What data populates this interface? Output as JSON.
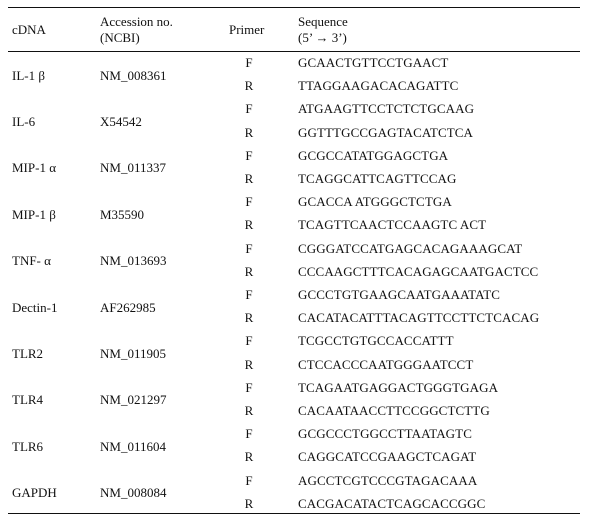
{
  "table": {
    "headers": {
      "cdna": "cDNA",
      "accession_line1": "Accession no.",
      "accession_line2": "(NCBI)",
      "primer": "Primer",
      "sequence_line1": "Sequence",
      "sequence_line2": "(5’ → 3’)"
    },
    "rows": [
      {
        "cdna": "IL-1 β",
        "accession": "NM_008361",
        "forward_label": "F",
        "forward_seq": "GCAACTGTTCCTGAACT",
        "reverse_label": "R",
        "reverse_seq": "TTAGGAAGACACAGATTC"
      },
      {
        "cdna": "IL-6",
        "accession": "X54542",
        "forward_label": "F",
        "forward_seq": "ATGAAGTTCCTCTCTGCAAG",
        "reverse_label": "R",
        "reverse_seq": "GGTTTGCCGAGTACATCTCA"
      },
      {
        "cdna": "MIP-1 α",
        "accession": "NM_011337",
        "forward_label": "F",
        "forward_seq": "GCGCCATATGGAGCTGA",
        "reverse_label": "R",
        "reverse_seq": "TCAGGCATTCAGTTCCAG"
      },
      {
        "cdna": "MIP-1 β",
        "accession": "M35590",
        "forward_label": "F",
        "forward_seq": "GCACCA ATGGGCTCTGA",
        "reverse_label": "R",
        "reverse_seq": "TCAGTTCAACTCCAAGTC ACT"
      },
      {
        "cdna": "TNF- α",
        "accession": "NM_013693",
        "forward_label": "F",
        "forward_seq": "CGGGATCCATGAGCACAGAAAGCAT",
        "reverse_label": "R",
        "reverse_seq": "CCCAAGCTTTCACAGAGCAATGACTCC"
      },
      {
        "cdna": "Dectin-1",
        "accession": "AF262985",
        "forward_label": "F",
        "forward_seq": "GCCCTGTGAAGCAATGAAATATC",
        "reverse_label": "R",
        "reverse_seq": "CACATACATTTACAGTTCCTTCTCACAG"
      },
      {
        "cdna": "TLR2",
        "accession": "NM_011905",
        "forward_label": "F",
        "forward_seq": "TCGCCTGTGCCACCATTT",
        "reverse_label": "R",
        "reverse_seq": "CTCCACCCAATGGGAATCCT"
      },
      {
        "cdna": "TLR4",
        "accession": "NM_021297",
        "forward_label": "F",
        "forward_seq": "TCAGAATGAGGACTGGGTGAGA",
        "reverse_label": "R",
        "reverse_seq": "CACAATAACCTTCCGGCTCTTG"
      },
      {
        "cdna": "TLR6",
        "accession": "NM_011604",
        "forward_label": "F",
        "forward_seq": "GCGCCCTGGCCTTAATAGTC",
        "reverse_label": "R",
        "reverse_seq": "CAGGCATCCGAAGCTCAGAT"
      },
      {
        "cdna": "GAPDH",
        "accession": "NM_008084",
        "forward_label": "F",
        "forward_seq": "AGCCTCGTCCCGTAGACAAA",
        "reverse_label": "R",
        "reverse_seq": "CACGACATACTCAGCACCGGC"
      }
    ]
  }
}
